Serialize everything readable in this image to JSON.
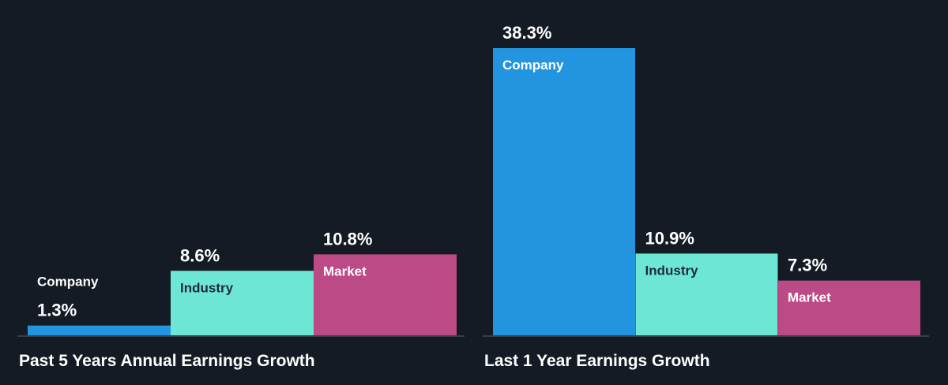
{
  "chart_data": [
    {
      "type": "bar",
      "title": "Past 5 Years Annual Earnings Growth",
      "categories": [
        "Company",
        "Industry",
        "Market"
      ],
      "values": [
        1.3,
        8.6,
        10.8
      ],
      "value_labels": [
        "1.3%",
        "8.6%",
        "10.8%"
      ],
      "unit": "%"
    },
    {
      "type": "bar",
      "title": "Last 1 Year Earnings Growth",
      "categories": [
        "Company",
        "Industry",
        "Market"
      ],
      "values": [
        38.3,
        10.9,
        7.3
      ],
      "value_labels": [
        "38.3%",
        "10.9%",
        "7.3%"
      ],
      "unit": "%"
    }
  ],
  "colors": {
    "background": "#151b24",
    "company": "#2394df",
    "industry": "#6ee6d6",
    "market": "#bc4a86",
    "baseline": "#5a6170",
    "text": "#ffffff",
    "dark_text": "#1e2a3a"
  }
}
